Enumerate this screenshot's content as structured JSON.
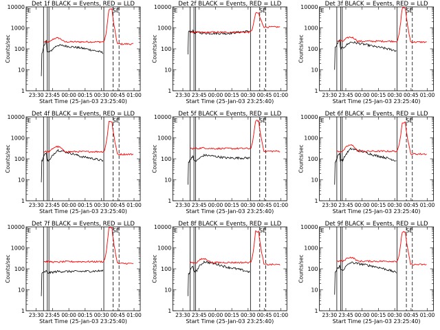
{
  "colors": {
    "events": "#000000",
    "lld": "#ff0000",
    "axes": "#000000",
    "background": "#ffffff"
  },
  "chart_data": [
    {
      "type": "line",
      "title": "Det 1f BLACK = Events, RED = LLD",
      "xlabel": "Start Time (25-Jan-03 23:25:40)",
      "ylabel": "Counts/sec",
      "yscale": "log",
      "ylim": [
        1,
        10000
      ],
      "xlim": [
        -5,
        100
      ],
      "xticks": [
        "23:30",
        "23:45",
        "00:00",
        "00:15",
        "00:30",
        "00:45",
        "01:00"
      ],
      "yticks": [
        "1",
        "10",
        "100",
        "1000",
        "10000"
      ],
      "flag_labels": [
        "E",
        "SE"
      ],
      "events": {
        "start": 60,
        "pre_peak": 280,
        "dip": 70,
        "rise": 150,
        "mid": 110,
        "end": 65
      },
      "lld": {
        "base": 215,
        "peak": 7800,
        "bump": 330,
        "end": 170
      }
    },
    {
      "type": "line",
      "title": "Det 2f BLACK = Events, RED = LLD",
      "xlabel": "Start Time (25-Jan-03 23:25:40)",
      "ylabel": "Counts/sec",
      "yscale": "log",
      "ylim": [
        1,
        10000
      ],
      "xlim": [
        -5,
        100
      ],
      "xticks": [
        "23:30",
        "23:45",
        "00:00",
        "00:15",
        "00:30",
        "00:45",
        "01:00"
      ],
      "yticks": [
        "1",
        "10",
        "100",
        "1000",
        "10000"
      ],
      "flag_labels": [
        "E",
        "SE"
      ],
      "events": {
        "start": 650,
        "pre_peak": 700,
        "dip": 600,
        "rise": 560,
        "mid": 540,
        "end": 700
      },
      "lld": {
        "base": 620,
        "peak": 5000,
        "bump": 600,
        "end": 1100
      }
    },
    {
      "type": "line",
      "title": "Det 3f BLACK = Events, RED = LLD",
      "xlabel": "Start Time (25-Jan-03 23:25:40)",
      "ylabel": "Counts/sec",
      "yscale": "log",
      "ylim": [
        1,
        10000
      ],
      "xlim": [
        -5,
        100
      ],
      "xticks": [
        "23:30",
        "23:45",
        "00:00",
        "00:15",
        "00:30",
        "00:45",
        "01:00"
      ],
      "yticks": [
        "1",
        "10",
        "100",
        "1000",
        "10000"
      ],
      "flag_labels": [
        "E",
        "SE"
      ],
      "events": {
        "start": 120,
        "pre_peak": 260,
        "dip": 110,
        "rise": 210,
        "mid": 130,
        "end": 80
      },
      "lld": {
        "base": 230,
        "peak": 9000,
        "bump": 360,
        "end": 210
      }
    },
    {
      "type": "line",
      "title": "Det 4f BLACK = Events, RED = LLD",
      "xlabel": "Start Time (25-Jan-03 23:25:40)",
      "ylabel": "Counts/sec",
      "yscale": "log",
      "ylim": [
        1,
        10000
      ],
      "xlim": [
        -5,
        100
      ],
      "xticks": [
        "23:30",
        "23:45",
        "00:00",
        "00:15",
        "00:30",
        "00:45",
        "01:00"
      ],
      "yticks": [
        "1",
        "10",
        "100",
        "1000",
        "10000"
      ],
      "flag_labels": [
        "E",
        "SE"
      ],
      "events": {
        "start": 90,
        "pre_peak": 220,
        "dip": 85,
        "rise": 260,
        "mid": 130,
        "end": 80
      },
      "lld": {
        "base": 220,
        "peak": 6000,
        "bump": 380,
        "end": 165
      }
    },
    {
      "type": "line",
      "title": "Det 5f BLACK = Events, RED = LLD",
      "xlabel": "Start Time (25-Jan-03 23:25:40)",
      "ylabel": "Counts/sec",
      "yscale": "log",
      "ylim": [
        1,
        10000
      ],
      "xlim": [
        -5,
        100
      ],
      "xticks": [
        "23:30",
        "23:45",
        "00:00",
        "00:15",
        "00:30",
        "00:45",
        "01:00"
      ],
      "yticks": [
        "1",
        "10",
        "100",
        "1000",
        "10000"
      ],
      "flag_labels": [
        "E",
        "SE"
      ],
      "events": {
        "start": 70,
        "pre_peak": 150,
        "dip": 80,
        "rise": 150,
        "mid": 110,
        "end": 110
      },
      "lld": {
        "base": 310,
        "peak": 6500,
        "bump": 330,
        "end": 230
      }
    },
    {
      "type": "line",
      "title": "Det 6f BLACK = Events, RED = LLD",
      "xlabel": "Start Time (25-Jan-03 23:25:40)",
      "ylabel": "Counts/sec",
      "yscale": "log",
      "ylim": [
        1,
        10000
      ],
      "xlim": [
        -5,
        100
      ],
      "xticks": [
        "23:30",
        "23:45",
        "00:00",
        "00:15",
        "00:30",
        "00:45",
        "01:00"
      ],
      "yticks": [
        "1",
        "10",
        "100",
        "1000",
        "10000"
      ],
      "flag_labels": [
        "E",
        "SE"
      ],
      "events": {
        "start": 70,
        "pre_peak": 200,
        "dip": 90,
        "rise": 300,
        "mid": 150,
        "end": 80
      },
      "lld": {
        "base": 230,
        "peak": 5500,
        "bump": 450,
        "end": 170
      }
    },
    {
      "type": "line",
      "title": "Det 7f BLACK = Events, RED = LLD",
      "xlabel": "Start Time (25-Jan-03 23:25:40)",
      "ylabel": "Counts/sec",
      "yscale": "log",
      "ylim": [
        1,
        10000
      ],
      "xlim": [
        -5,
        100
      ],
      "xticks": [
        "23:30",
        "23:45",
        "00:00",
        "00:15",
        "00:30",
        "00:45",
        "01:00"
      ],
      "yticks": [
        "1",
        "10",
        "100",
        "1000",
        "10000"
      ],
      "flag_labels": [
        "E",
        "SE"
      ],
      "events": {
        "start": 60,
        "pre_peak": 80,
        "dip": 65,
        "rise": 75,
        "mid": 75,
        "end": 80
      },
      "lld": {
        "base": 220,
        "peak": 9000,
        "bump": 210,
        "end": 180
      }
    },
    {
      "type": "line",
      "title": "Det 8f BLACK = Events, RED = LLD",
      "xlabel": "Start Time (25-Jan-03 23:25:40)",
      "ylabel": "Counts/sec",
      "yscale": "log",
      "ylim": [
        1,
        10000
      ],
      "xlim": [
        -5,
        100
      ],
      "xticks": [
        "23:30",
        "23:45",
        "00:00",
        "00:15",
        "00:30",
        "00:45",
        "01:00"
      ],
      "yticks": [
        "1",
        "10",
        "100",
        "1000",
        "10000"
      ],
      "flag_labels": [
        "E",
        "SE"
      ],
      "events": {
        "start": 60,
        "pre_peak": 140,
        "dip": 80,
        "rise": 220,
        "mid": 120,
        "end": 70
      },
      "lld": {
        "base": 200,
        "peak": 6000,
        "bump": 300,
        "end": 160
      }
    },
    {
      "type": "line",
      "title": "Det 9f BLACK = Events, RED = LLD",
      "xlabel": "Start Time (25-Jan-03 23:25:40)",
      "ylabel": "Counts/sec",
      "yscale": "log",
      "ylim": [
        1,
        10000
      ],
      "xlim": [
        -5,
        100
      ],
      "xticks": [
        "23:30",
        "23:45",
        "00:00",
        "00:15",
        "00:30",
        "00:45",
        "01:00"
      ],
      "yticks": [
        "1",
        "10",
        "100",
        "1000",
        "10000"
      ],
      "flag_labels": [
        "E",
        "SE"
      ],
      "events": {
        "start": 70,
        "pre_peak": 150,
        "dip": 90,
        "rise": 200,
        "mid": 130,
        "end": 65
      },
      "lld": {
        "base": 230,
        "peak": 5800,
        "bump": 350,
        "end": 160
      }
    }
  ]
}
